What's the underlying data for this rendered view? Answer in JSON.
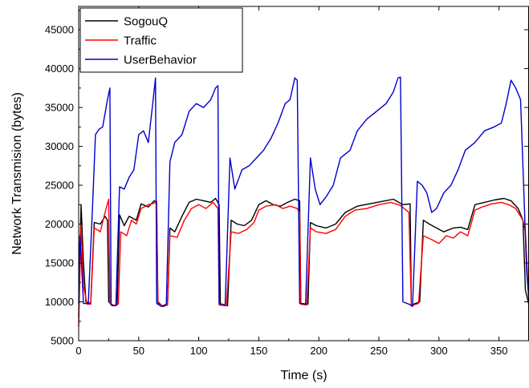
{
  "chart_data": {
    "type": "line",
    "xlabel": "Time (s)",
    "ylabel": "Network Transmision (bytes)",
    "xlim": [
      0,
      375
    ],
    "ylim": [
      5000,
      48000
    ],
    "xticks": [
      0,
      50,
      100,
      150,
      200,
      250,
      300,
      350
    ],
    "yticks": [
      5000,
      10000,
      15000,
      20000,
      25000,
      30000,
      35000,
      40000,
      45000
    ],
    "grid": false,
    "legend_position": "top-left",
    "series": [
      {
        "name": "SogouQ",
        "color": "#000000",
        "points": [
          [
            0,
            8000
          ],
          [
            2,
            22500
          ],
          [
            4,
            15000
          ],
          [
            6,
            10000
          ],
          [
            10,
            9800
          ],
          [
            13,
            20200
          ],
          [
            18,
            20000
          ],
          [
            22,
            21000
          ],
          [
            24,
            20500
          ],
          [
            25,
            10000
          ],
          [
            28,
            9500
          ],
          [
            32,
            9600
          ],
          [
            34,
            21200
          ],
          [
            38,
            19800
          ],
          [
            42,
            21000
          ],
          [
            48,
            20500
          ],
          [
            52,
            22600
          ],
          [
            58,
            22200
          ],
          [
            63,
            23000
          ],
          [
            65,
            22800
          ],
          [
            66,
            10000
          ],
          [
            70,
            9400
          ],
          [
            74,
            9600
          ],
          [
            76,
            19500
          ],
          [
            80,
            19000
          ],
          [
            86,
            21000
          ],
          [
            92,
            22800
          ],
          [
            98,
            23200
          ],
          [
            104,
            23000
          ],
          [
            110,
            22800
          ],
          [
            114,
            23300
          ],
          [
            117,
            22500
          ],
          [
            118,
            9600
          ],
          [
            124,
            9500
          ],
          [
            127,
            20500
          ],
          [
            132,
            20000
          ],
          [
            138,
            19800
          ],
          [
            144,
            20500
          ],
          [
            150,
            22500
          ],
          [
            156,
            23000
          ],
          [
            162,
            22500
          ],
          [
            168,
            22300
          ],
          [
            174,
            22800
          ],
          [
            180,
            23200
          ],
          [
            184,
            23000
          ],
          [
            185,
            9800
          ],
          [
            191,
            9700
          ],
          [
            193,
            20200
          ],
          [
            198,
            19800
          ],
          [
            206,
            19500
          ],
          [
            214,
            20000
          ],
          [
            222,
            21500
          ],
          [
            232,
            22300
          ],
          [
            242,
            22600
          ],
          [
            252,
            22900
          ],
          [
            262,
            23200
          ],
          [
            270,
            22500
          ],
          [
            276,
            22600
          ],
          [
            277,
            9600
          ],
          [
            284,
            10000
          ],
          [
            287,
            20500
          ],
          [
            292,
            20000
          ],
          [
            298,
            19500
          ],
          [
            304,
            19000
          ],
          [
            312,
            19500
          ],
          [
            318,
            19600
          ],
          [
            324,
            19300
          ],
          [
            330,
            22500
          ],
          [
            338,
            22800
          ],
          [
            346,
            23100
          ],
          [
            354,
            23300
          ],
          [
            360,
            23000
          ],
          [
            366,
            22000
          ],
          [
            370,
            20500
          ],
          [
            372,
            11500
          ],
          [
            375,
            9600
          ]
        ]
      },
      {
        "name": "Traffic",
        "color": "#ff0000",
        "points": [
          [
            0,
            6800
          ],
          [
            2,
            20000
          ],
          [
            4,
            12000
          ],
          [
            7,
            9700
          ],
          [
            10,
            9700
          ],
          [
            13,
            19500
          ],
          [
            18,
            19000
          ],
          [
            22,
            21500
          ],
          [
            25,
            23200
          ],
          [
            26,
            9800
          ],
          [
            30,
            9500
          ],
          [
            33,
            9700
          ],
          [
            35,
            19000
          ],
          [
            40,
            18500
          ],
          [
            44,
            20500
          ],
          [
            48,
            20000
          ],
          [
            52,
            22000
          ],
          [
            58,
            22500
          ],
          [
            63,
            22700
          ],
          [
            65,
            22900
          ],
          [
            66,
            9800
          ],
          [
            70,
            9500
          ],
          [
            74,
            9600
          ],
          [
            76,
            18500
          ],
          [
            82,
            18300
          ],
          [
            88,
            20500
          ],
          [
            94,
            22000
          ],
          [
            100,
            22500
          ],
          [
            106,
            22000
          ],
          [
            112,
            22800
          ],
          [
            116,
            22000
          ],
          [
            117,
            9600
          ],
          [
            123,
            9500
          ],
          [
            127,
            19000
          ],
          [
            133,
            18800
          ],
          [
            140,
            19300
          ],
          [
            146,
            20200
          ],
          [
            150,
            21800
          ],
          [
            156,
            22300
          ],
          [
            164,
            22500
          ],
          [
            170,
            22000
          ],
          [
            176,
            22300
          ],
          [
            182,
            22000
          ],
          [
            184,
            21500
          ],
          [
            185,
            9700
          ],
          [
            190,
            9600
          ],
          [
            193,
            19500
          ],
          [
            198,
            19000
          ],
          [
            206,
            18800
          ],
          [
            214,
            19300
          ],
          [
            222,
            21000
          ],
          [
            230,
            21800
          ],
          [
            240,
            22000
          ],
          [
            250,
            22500
          ],
          [
            260,
            22800
          ],
          [
            268,
            22400
          ],
          [
            275,
            21500
          ],
          [
            277,
            9500
          ],
          [
            283,
            9800
          ],
          [
            287,
            18500
          ],
          [
            294,
            18000
          ],
          [
            300,
            17500
          ],
          [
            306,
            18500
          ],
          [
            312,
            18200
          ],
          [
            318,
            19000
          ],
          [
            324,
            18500
          ],
          [
            330,
            21800
          ],
          [
            336,
            22200
          ],
          [
            344,
            22600
          ],
          [
            352,
            22800
          ],
          [
            358,
            22500
          ],
          [
            364,
            22000
          ],
          [
            370,
            20500
          ],
          [
            372,
            19000
          ],
          [
            375,
            9500
          ]
        ]
      },
      {
        "name": "UserBehavior",
        "color": "#0000cc",
        "points": [
          [
            0,
            9800
          ],
          [
            1,
            18500
          ],
          [
            2,
            16000
          ],
          [
            4,
            9800
          ],
          [
            8,
            9800
          ],
          [
            12,
            24000
          ],
          [
            14,
            31500
          ],
          [
            17,
            32200
          ],
          [
            20,
            32500
          ],
          [
            24,
            36000
          ],
          [
            26,
            37500
          ],
          [
            27,
            9600
          ],
          [
            31,
            9500
          ],
          [
            34,
            24800
          ],
          [
            38,
            24500
          ],
          [
            42,
            26000
          ],
          [
            46,
            27000
          ],
          [
            50,
            31500
          ],
          [
            54,
            32000
          ],
          [
            58,
            30500
          ],
          [
            62,
            36000
          ],
          [
            64,
            38800
          ],
          [
            65,
            9800
          ],
          [
            69,
            9400
          ],
          [
            73,
            9700
          ],
          [
            76,
            28000
          ],
          [
            80,
            30500
          ],
          [
            86,
            31500
          ],
          [
            92,
            34500
          ],
          [
            98,
            35500
          ],
          [
            104,
            35000
          ],
          [
            110,
            36000
          ],
          [
            114,
            37500
          ],
          [
            116,
            37800
          ],
          [
            117,
            9800
          ],
          [
            122,
            9600
          ],
          [
            126,
            28500
          ],
          [
            130,
            24500
          ],
          [
            136,
            27000
          ],
          [
            142,
            27500
          ],
          [
            148,
            28500
          ],
          [
            154,
            29500
          ],
          [
            160,
            31000
          ],
          [
            166,
            33000
          ],
          [
            172,
            35500
          ],
          [
            176,
            36000
          ],
          [
            180,
            38800
          ],
          [
            182,
            38500
          ],
          [
            184,
            9800
          ],
          [
            189,
            9700
          ],
          [
            193,
            28500
          ],
          [
            197,
            24500
          ],
          [
            201,
            22500
          ],
          [
            206,
            23500
          ],
          [
            212,
            25000
          ],
          [
            218,
            28500
          ],
          [
            226,
            29500
          ],
          [
            232,
            32000
          ],
          [
            240,
            33500
          ],
          [
            248,
            34500
          ],
          [
            256,
            35500
          ],
          [
            262,
            37000
          ],
          [
            266,
            38800
          ],
          [
            268,
            38900
          ],
          [
            270,
            10000
          ],
          [
            275,
            9700
          ],
          [
            278,
            9400
          ],
          [
            282,
            25500
          ],
          [
            286,
            25000
          ],
          [
            290,
            24000
          ],
          [
            294,
            21500
          ],
          [
            298,
            22000
          ],
          [
            304,
            24000
          ],
          [
            310,
            25000
          ],
          [
            316,
            27000
          ],
          [
            322,
            29500
          ],
          [
            330,
            30500
          ],
          [
            338,
            32000
          ],
          [
            346,
            32500
          ],
          [
            352,
            33000
          ],
          [
            356,
            35500
          ],
          [
            360,
            38500
          ],
          [
            364,
            37500
          ],
          [
            368,
            36000
          ],
          [
            371,
            23000
          ],
          [
            373,
            14000
          ],
          [
            375,
            10000
          ]
        ]
      }
    ]
  }
}
